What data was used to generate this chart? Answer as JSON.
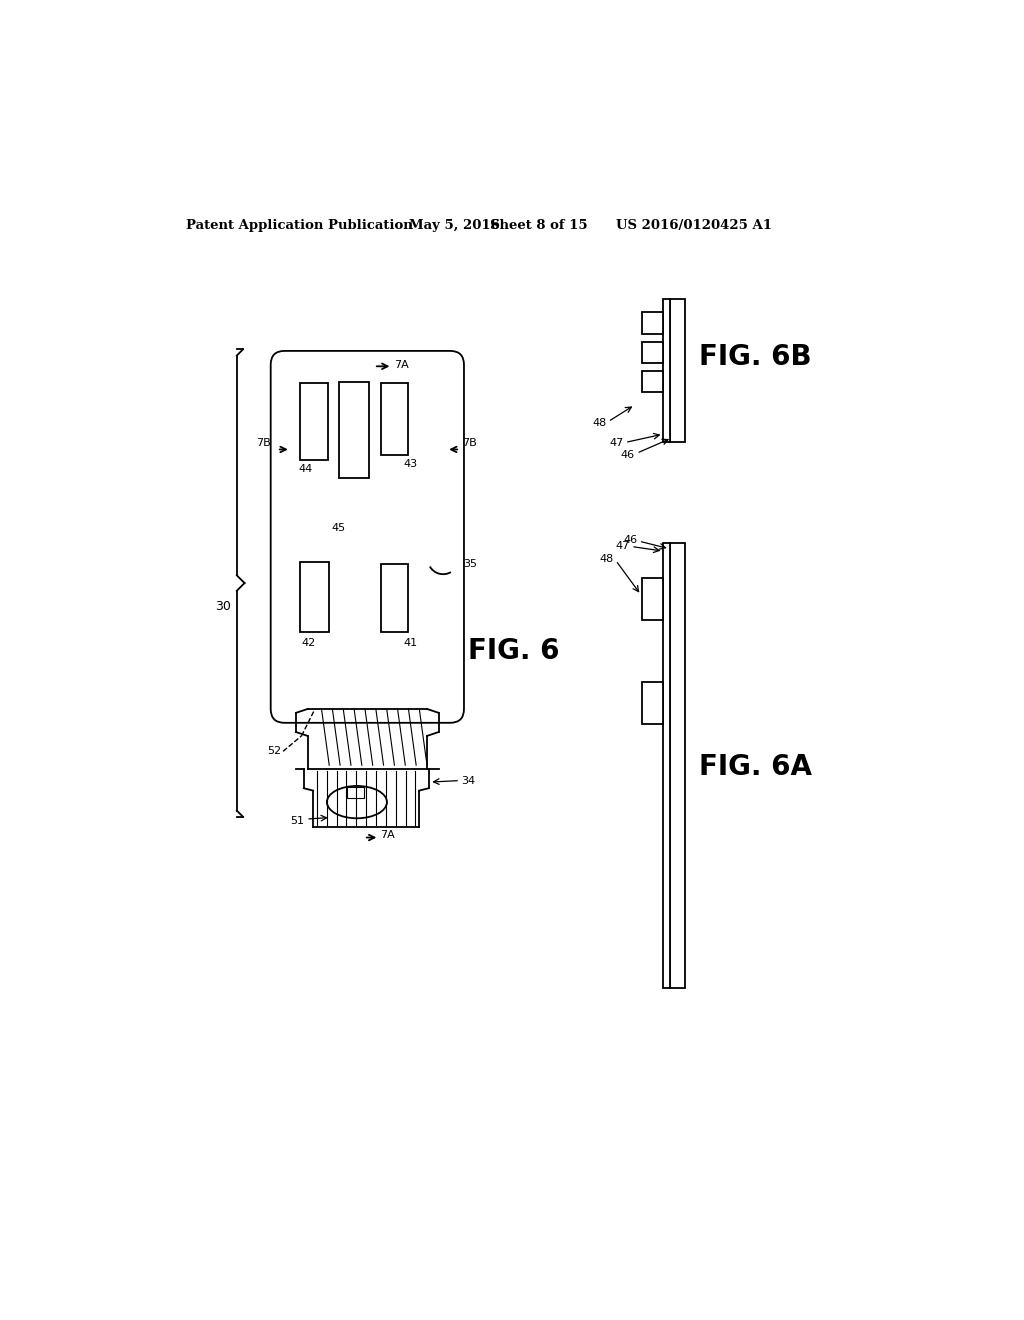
{
  "bg_color": "#ffffff",
  "line_color": "#000000",
  "header_text": "Patent Application Publication",
  "header_date": "May 5, 2016",
  "header_sheet": "Sheet 8 of 15",
  "header_patent": "US 2016/0120425 A1",
  "fig6_label": "FIG. 6",
  "fig6a_label": "FIG. 6A",
  "fig6b_label": "FIG. 6B"
}
